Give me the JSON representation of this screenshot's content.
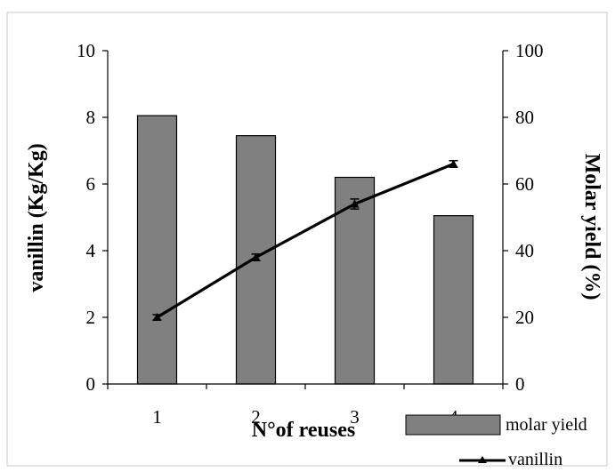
{
  "chart_data": {
    "type": "bar+line",
    "categories": [
      "1",
      "2",
      "3",
      "4"
    ],
    "xlabel": "N°of reuses",
    "ylabel_left": "vanillin (Kg/Kg)",
    "ylabel_right": "Molar yield (%)",
    "ylim_left": [
      0,
      10
    ],
    "ylim_right": [
      0,
      100
    ],
    "yticks_left": [
      "0",
      "2",
      "4",
      "6",
      "8",
      "10"
    ],
    "yticks_right": [
      "0",
      "20",
      "40",
      "60",
      "80",
      "100"
    ],
    "series": [
      {
        "name": "molar yield",
        "kind": "bar",
        "axis": "right",
        "values": [
          80.5,
          74.5,
          62,
          50.5
        ],
        "color": "#808080"
      },
      {
        "name": "vanillin",
        "kind": "line",
        "axis": "left",
        "values": [
          2.0,
          3.8,
          5.4,
          6.6
        ],
        "errors": [
          0.08,
          0.1,
          0.15,
          0.1
        ],
        "color": "#000000"
      }
    ],
    "legend": "bottom-right",
    "grid": false
  }
}
